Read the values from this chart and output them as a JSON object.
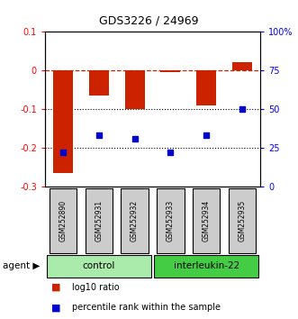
{
  "title": "GDS3226 / 24969",
  "samples": [
    "GSM252890",
    "GSM252931",
    "GSM252932",
    "GSM252933",
    "GSM252934",
    "GSM252935"
  ],
  "log10_ratio": [
    -0.265,
    -0.065,
    -0.1,
    -0.005,
    -0.09,
    0.02
  ],
  "percentile_rank": [
    22,
    33,
    31,
    22,
    33,
    50
  ],
  "ylim_left": [
    -0.3,
    0.1
  ],
  "ylim_right": [
    0,
    100
  ],
  "yticks_left": [
    -0.3,
    -0.2,
    -0.1,
    0.0,
    0.1
  ],
  "ytick_labels_left": [
    "-0.3",
    "-0.2",
    "-0.1",
    "0",
    "0.1"
  ],
  "yticks_right": [
    0,
    25,
    50,
    75,
    100
  ],
  "ytick_labels_right": [
    "0",
    "25",
    "50",
    "75",
    "100%"
  ],
  "bar_color": "#cc2200",
  "scatter_color": "#0000cc",
  "ctrl_color": "#aaeaaa",
  "intl_color": "#44cc44",
  "sample_box_color": "#cccccc",
  "bar_width": 0.55,
  "legend_items": [
    {
      "label": "log10 ratio",
      "color": "#cc2200"
    },
    {
      "label": "percentile rank within the sample",
      "color": "#0000cc"
    }
  ]
}
